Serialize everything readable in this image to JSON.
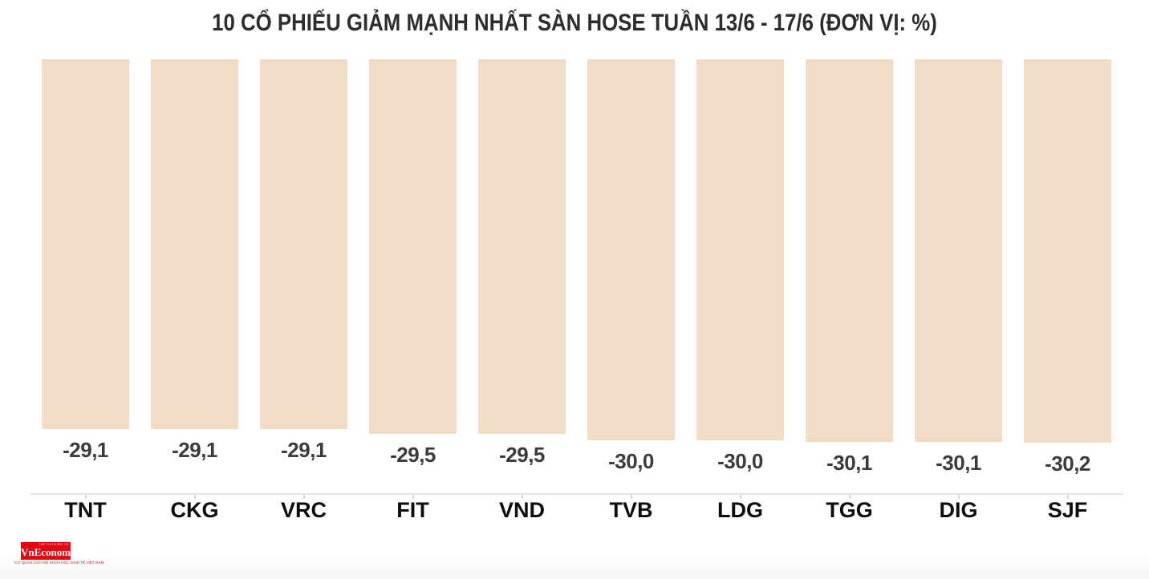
{
  "chart_data": {
    "type": "bar",
    "title": "10 CỔ PHIẾU GIẢM MẠNH NHẤT SÀN HOSE TUẦN 13/6 - 17/6 (ĐƠN VỊ: %)",
    "unit": "%",
    "categories": [
      "TNT",
      "CKG",
      "VRC",
      "FIT",
      "VND",
      "TVB",
      "LDG",
      "TGG",
      "DIG",
      "SJF"
    ],
    "values": [
      -29.1,
      -29.1,
      -29.1,
      -29.5,
      -29.5,
      -30.0,
      -30.0,
      -30.1,
      -30.1,
      -30.2
    ],
    "value_labels": [
      "-29,1",
      "-29,1",
      "-29,1",
      "-29,5",
      "-29,5",
      "-30,0",
      "-30,0",
      "-30,1",
      "-30,1",
      "-30,2"
    ],
    "xlabel": "",
    "ylabel": "",
    "ylim": [
      -30.2,
      0
    ],
    "layout_hints": {
      "bars_hang_from_top": true,
      "value_labels_below_bars": true,
      "grid": false,
      "legend": false,
      "axis_ticks_at_bar_centers": true
    }
  },
  "colors": {
    "bar": "#F3DCC6",
    "title": "#2D2D2D",
    "value_label": "#3C3C3C",
    "category_label": "#0D0D0D",
    "axis_line": "#E5E5E5",
    "logo_red": "#E30613"
  },
  "branding": {
    "logo_text": "VnEconomy",
    "logo_top_text": "TẠP CHÍ ĐIỆN TỬ",
    "tagline": "CƠ QUAN CỦA HỘI KHOA HỌC KINH TẾ VIỆT NAM"
  }
}
